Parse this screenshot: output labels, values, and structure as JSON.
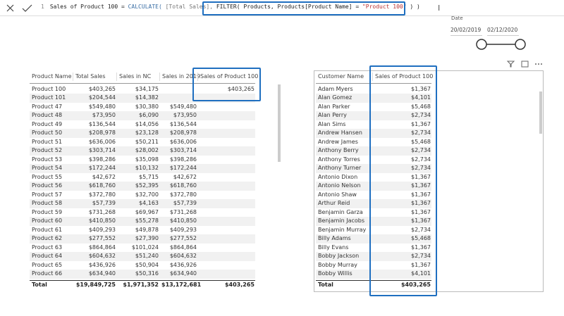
{
  "formula_bar": {
    "line_number": "1",
    "parts": [
      "Sales of Product 100 = ",
      "CALCULATE(",
      " [Total Sales], ",
      "FILTER( Products, Products[Product Name] = ",
      "\"Product 100\"",
      " ) )"
    ]
  },
  "date_slicer": {
    "title": "Date",
    "start": "20/02/2019",
    "end": "02/12/2020"
  },
  "product_table": {
    "headers": [
      "Product Name",
      "Total Sales",
      "Sales in NC",
      "Sales in 2019",
      "Sales of Product 100"
    ],
    "rows": [
      [
        "Product 100",
        "$403,265",
        "$34,175",
        null,
        "$403,265"
      ],
      [
        "Product 101",
        "$204,544",
        "$14,382",
        null,
        null
      ],
      [
        "Product 47",
        "$549,480",
        "$30,380",
        "$549,480",
        null
      ],
      [
        "Product 48",
        "$73,950",
        "$6,090",
        "$73,950",
        null
      ],
      [
        "Product 49",
        "$136,544",
        "$14,056",
        "$136,544",
        null
      ],
      [
        "Product 50",
        "$208,978",
        "$23,128",
        "$208,978",
        null
      ],
      [
        "Product 51",
        "$636,006",
        "$50,211",
        "$636,006",
        null
      ],
      [
        "Product 52",
        "$303,714",
        "$28,002",
        "$303,714",
        null
      ],
      [
        "Product 53",
        "$398,286",
        "$35,098",
        "$398,286",
        null
      ],
      [
        "Product 54",
        "$172,244",
        "$10,132",
        "$172,244",
        null
      ],
      [
        "Product 55",
        "$42,672",
        "$5,715",
        "$42,672",
        null
      ],
      [
        "Product 56",
        "$618,760",
        "$52,395",
        "$618,760",
        null
      ],
      [
        "Product 57",
        "$372,780",
        "$32,700",
        "$372,780",
        null
      ],
      [
        "Product 58",
        "$57,739",
        "$4,163",
        "$57,739",
        null
      ],
      [
        "Product 59",
        "$731,268",
        "$69,967",
        "$731,268",
        null
      ],
      [
        "Product 60",
        "$410,850",
        "$55,278",
        "$410,850",
        null
      ],
      [
        "Product 61",
        "$409,293",
        "$49,878",
        "$409,293",
        null
      ],
      [
        "Product 62",
        "$277,552",
        "$27,390",
        "$277,552",
        null
      ],
      [
        "Product 63",
        "$864,864",
        "$101,024",
        "$864,864",
        null
      ],
      [
        "Product 64",
        "$604,632",
        "$51,240",
        "$604,632",
        null
      ],
      [
        "Product 65",
        "$436,926",
        "$50,904",
        "$436,926",
        null
      ],
      [
        "Product 66",
        "$634,940",
        "$50,316",
        "$634,940",
        null
      ]
    ],
    "total": [
      "Total",
      "$19,849,725",
      "$1,971,352",
      "$13,172,681",
      "$403,265"
    ]
  },
  "customer_table": {
    "headers": [
      "Customer Name",
      "Sales of Product 100"
    ],
    "rows": [
      [
        "Adam Myers",
        "$1,367"
      ],
      [
        "Alan Gomez",
        "$4,101"
      ],
      [
        "Alan Parker",
        "$5,468"
      ],
      [
        "Alan Perry",
        "$2,734"
      ],
      [
        "Alan Sims",
        "$1,367"
      ],
      [
        "Andrew Hansen",
        "$2,734"
      ],
      [
        "Andrew James",
        "$5,468"
      ],
      [
        "Anthony Berry",
        "$2,734"
      ],
      [
        "Anthony Torres",
        "$2,734"
      ],
      [
        "Anthony Turner",
        "$2,734"
      ],
      [
        "Antonio Dixon",
        "$1,367"
      ],
      [
        "Antonio Nelson",
        "$1,367"
      ],
      [
        "Antonio Shaw",
        "$1,367"
      ],
      [
        "Arthur Reid",
        "$1,367"
      ],
      [
        "Benjamin Garza",
        "$1,367"
      ],
      [
        "Benjamin Jacobs",
        "$1,367"
      ],
      [
        "Benjamin Murray",
        "$2,734"
      ],
      [
        "Billy Adams",
        "$5,468"
      ],
      [
        "Billy Evans",
        "$1,367"
      ],
      [
        "Bobby Jackson",
        "$2,734"
      ],
      [
        "Bobby Murray",
        "$1,367"
      ],
      [
        "Bobby Willis",
        "$4,101"
      ]
    ],
    "total": [
      "Total",
      "$403,265"
    ]
  }
}
